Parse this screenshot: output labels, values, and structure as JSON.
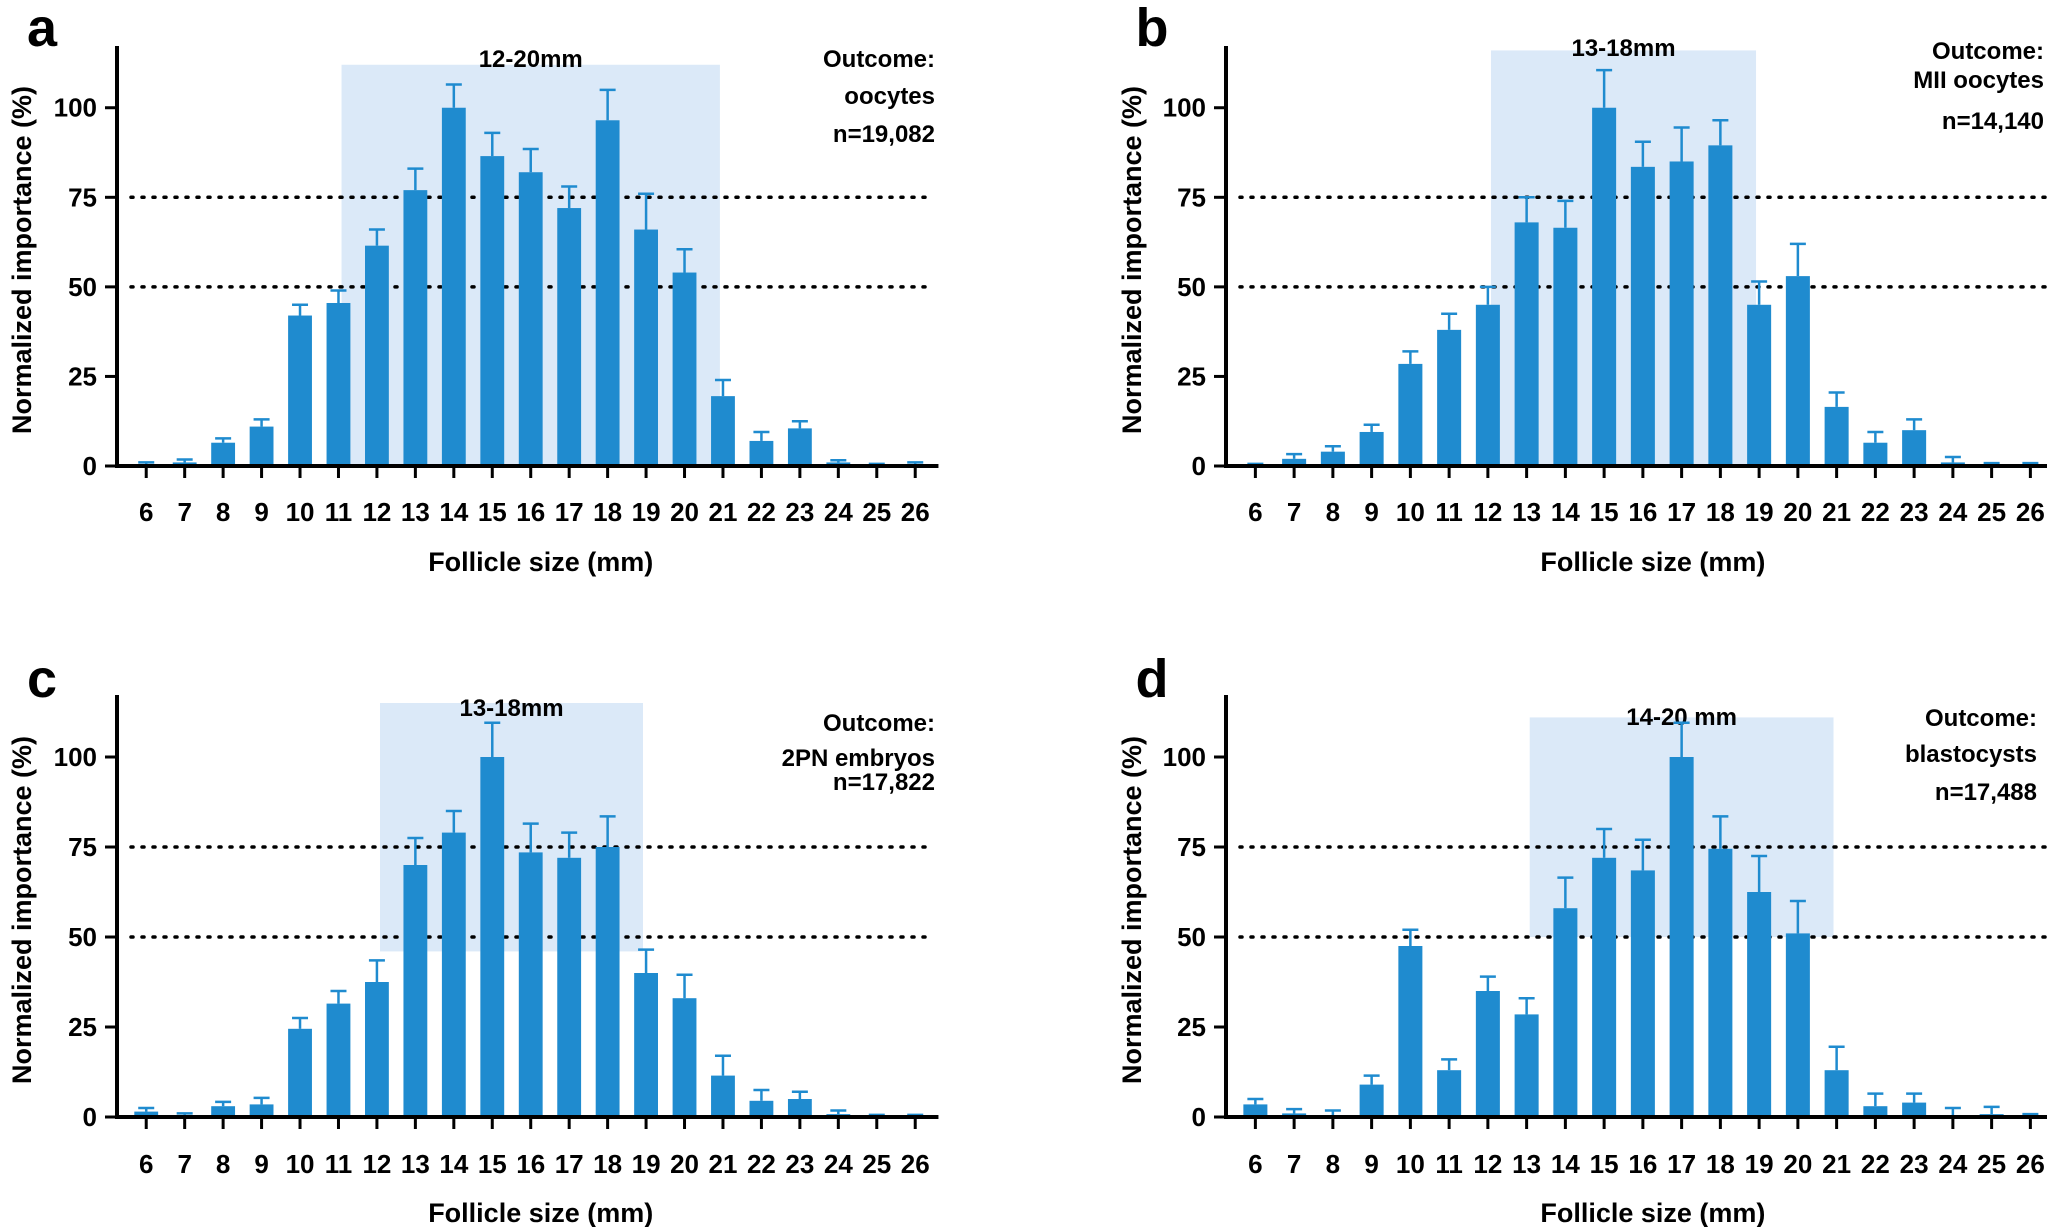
{
  "colors": {
    "bar": "#1f8bcf",
    "highlight": "#dbe9f8",
    "axis": "#000000"
  },
  "chart_data": [
    {
      "panel": "a",
      "type": "bar",
      "xlabel": "Follicle size (mm)",
      "ylabel": "Normalized importance (%)",
      "ylim": [
        0,
        115
      ],
      "yticks": [
        0,
        25,
        50,
        75,
        100
      ],
      "reference_lines": [
        50,
        75
      ],
      "categories": [
        "6",
        "7",
        "8",
        "9",
        "10",
        "11",
        "12",
        "13",
        "14",
        "15",
        "16",
        "17",
        "18",
        "19",
        "20",
        "21",
        "22",
        "23",
        "24",
        "25",
        "26"
      ],
      "values": [
        0.5,
        1.0,
        6.5,
        11.0,
        42.0,
        45.5,
        61.5,
        77.0,
        100.0,
        86.5,
        82.0,
        72.0,
        96.5,
        66.0,
        54.0,
        19.5,
        7.0,
        10.5,
        1.0,
        0.3,
        0.5
      ],
      "errors": [
        0.5,
        0.8,
        1.2,
        2.0,
        3.0,
        3.5,
        4.5,
        6.0,
        6.5,
        6.5,
        6.5,
        6.0,
        8.5,
        10.0,
        6.5,
        4.5,
        2.5,
        2.0,
        0.6,
        0.3,
        0.5
      ],
      "highlight": {
        "label": "12-20mm",
        "from": "12",
        "to": "20",
        "ymin": 0,
        "ymax": 112
      },
      "outcome_lines": [
        "Outcome:",
        "oocytes"
      ],
      "n_label": "n=19,082"
    },
    {
      "panel": "b",
      "type": "bar",
      "xlabel": "Follicle size (mm)",
      "ylabel": "Normalized importance (%)",
      "ylim": [
        0,
        115
      ],
      "yticks": [
        0,
        25,
        50,
        75,
        100
      ],
      "reference_lines": [
        50,
        75
      ],
      "categories": [
        "6",
        "7",
        "8",
        "9",
        "10",
        "11",
        "12",
        "13",
        "14",
        "15",
        "16",
        "17",
        "18",
        "19",
        "20",
        "21",
        "22",
        "23",
        "24",
        "25",
        "26"
      ],
      "values": [
        0.3,
        2.0,
        4.0,
        9.5,
        28.5,
        38.0,
        45.0,
        68.0,
        66.5,
        100.0,
        83.5,
        85.0,
        89.5,
        45.0,
        53.0,
        16.5,
        6.5,
        10.0,
        1.0,
        0.3,
        0.3
      ],
      "errors": [
        0.3,
        1.3,
        1.5,
        2.0,
        3.5,
        4.5,
        5.0,
        7.0,
        7.5,
        10.5,
        7.0,
        9.5,
        7.0,
        6.5,
        9.0,
        4.0,
        3.0,
        3.0,
        1.5,
        0.5,
        0.5
      ],
      "highlight": {
        "label": "13-18mm",
        "from": "13",
        "to": "18",
        "ymin": 0,
        "ymax": 116
      },
      "outcome_lines": [
        "Outcome:",
        "MII oocytes"
      ],
      "n_label": "n=14,140"
    },
    {
      "panel": "c",
      "type": "bar",
      "xlabel": "Follicle size (mm)",
      "ylabel": "Normalized importance (%)",
      "ylim": [
        0,
        115
      ],
      "yticks": [
        0,
        25,
        50,
        75,
        100
      ],
      "reference_lines": [
        50,
        75
      ],
      "categories": [
        "6",
        "7",
        "8",
        "9",
        "10",
        "11",
        "12",
        "13",
        "14",
        "15",
        "16",
        "17",
        "18",
        "19",
        "20",
        "21",
        "22",
        "23",
        "24",
        "25",
        "26"
      ],
      "values": [
        1.5,
        0.5,
        3.0,
        3.5,
        24.5,
        31.5,
        37.5,
        70.0,
        79.0,
        100.0,
        73.5,
        72.0,
        75.0,
        40.0,
        33.0,
        11.5,
        4.5,
        5.0,
        0.8,
        0.3,
        0.3
      ],
      "errors": [
        1.0,
        0.5,
        1.2,
        1.8,
        3.0,
        3.5,
        6.0,
        7.5,
        6.0,
        9.5,
        8.0,
        7.0,
        8.5,
        6.5,
        6.5,
        5.5,
        3.0,
        2.0,
        1.0,
        0.3,
        0.3
      ],
      "highlight": {
        "label": "13-18mm",
        "from": "13",
        "to": "18",
        "ymin": 46,
        "ymax": 115
      },
      "outcome_lines": [
        "Outcome:",
        "2PN embryos"
      ],
      "n_label": "n=17,822"
    },
    {
      "panel": "d",
      "type": "bar",
      "xlabel": "Follicle size (mm)",
      "ylabel": "Normalized importance (%)",
      "ylim": [
        0,
        115
      ],
      "yticks": [
        0,
        25,
        50,
        75,
        100
      ],
      "reference_lines": [
        50,
        75
      ],
      "categories": [
        "6",
        "7",
        "8",
        "9",
        "10",
        "11",
        "12",
        "13",
        "14",
        "15",
        "16",
        "17",
        "18",
        "19",
        "20",
        "21",
        "22",
        "23",
        "24",
        "25",
        "26"
      ],
      "values": [
        3.5,
        1.0,
        0.3,
        9.0,
        47.5,
        13.0,
        35.0,
        28.5,
        58.0,
        72.0,
        68.5,
        100.0,
        74.5,
        62.5,
        51.0,
        13.0,
        3.0,
        4.0,
        0.5,
        0.8,
        0.3
      ],
      "errors": [
        1.5,
        1.2,
        1.5,
        2.5,
        4.5,
        3.0,
        4.0,
        4.5,
        8.5,
        8.0,
        8.5,
        9.5,
        9.0,
        10.0,
        9.0,
        6.5,
        3.5,
        2.5,
        2.0,
        2.0,
        0.5
      ],
      "highlight": {
        "label": "14-20 mm",
        "from": "14",
        "to": "20",
        "ymin": 50,
        "ymax": 111
      },
      "outcome_lines": [
        "Outcome:",
        "blastocysts"
      ],
      "n_label": "n=17,488"
    }
  ]
}
